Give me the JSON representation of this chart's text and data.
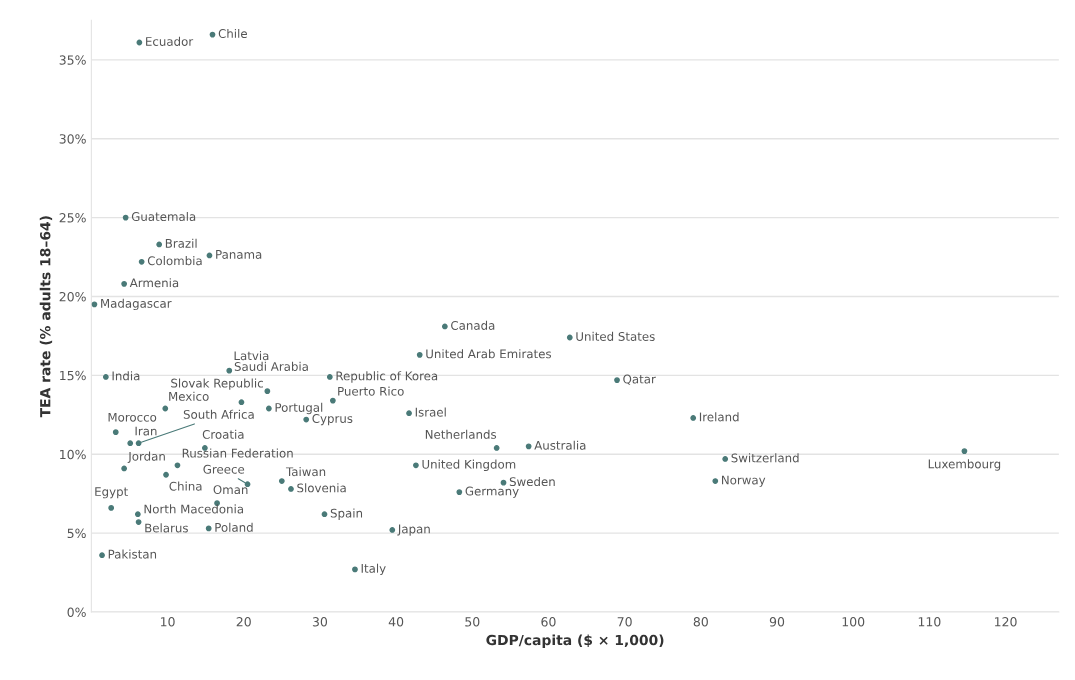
{
  "chart_data": {
    "type": "scatter",
    "xlabel": "GDP/capita ($ × 1,000)",
    "ylabel": "TEA rate (% adults 18–64)",
    "xlim": [
      0,
      127
    ],
    "xticks": [
      10,
      20,
      30,
      40,
      50,
      60,
      70,
      80,
      90,
      100,
      110,
      120
    ],
    "ylim": [
      0,
      37.5
    ],
    "yticks": [
      {
        "value": 0,
        "label": "0%"
      },
      {
        "value": 5,
        "label": "5%"
      },
      {
        "value": 10,
        "label": "10%"
      },
      {
        "value": 15,
        "label": "15%"
      },
      {
        "value": 20,
        "label": "20%"
      },
      {
        "value": 25,
        "label": "25%"
      },
      {
        "value": 30,
        "label": "30%"
      },
      {
        "value": 35,
        "label": "35%"
      }
    ],
    "grid": "y",
    "marker": "circle",
    "series": [
      {
        "color": "#4a7a78",
        "x": [
          6.3,
          15.9,
          4.5,
          8.9,
          15.5,
          6.6,
          4.3,
          0.4,
          1.9,
          18.1,
          23.1,
          19.7,
          9.7,
          23.3,
          31.3,
          31.7,
          28.2,
          3.2,
          5.1,
          6.2,
          14.9,
          4.3,
          11.3,
          9.8,
          20.5,
          16.5,
          25.0,
          26.2,
          2.6,
          6.1,
          6.2,
          15.4,
          30.6,
          1.4,
          34.6,
          46.4,
          62.8,
          43.1,
          69.0,
          41.7,
          53.2,
          57.4,
          42.6,
          54.1,
          48.3,
          39.5,
          79.0,
          83.2,
          81.9,
          114.6
        ],
        "values": [
          36.1,
          36.6,
          25.0,
          23.3,
          22.6,
          22.2,
          20.8,
          19.5,
          14.9,
          15.3,
          14.0,
          13.3,
          12.9,
          12.9,
          14.9,
          13.4,
          12.2,
          11.4,
          10.7,
          10.7,
          10.4,
          9.1,
          9.3,
          8.7,
          8.1,
          6.9,
          8.3,
          7.8,
          6.6,
          6.2,
          5.7,
          5.3,
          6.2,
          3.6,
          2.7,
          18.1,
          17.4,
          16.3,
          14.7,
          12.6,
          10.4,
          10.5,
          9.3,
          8.2,
          7.6,
          5.2,
          12.3,
          9.7,
          8.3,
          10.2
        ]
      }
    ],
    "annotations": [
      {
        "text": "Ecuador",
        "x": 6.3,
        "y": 36.1
      },
      {
        "text": "Chile",
        "x": 15.9,
        "y": 36.6
      },
      {
        "text": "Guatemala",
        "x": 4.5,
        "y": 25.0
      },
      {
        "text": "Brazil",
        "x": 8.9,
        "y": 23.3
      },
      {
        "text": "Panama",
        "x": 15.5,
        "y": 22.6
      },
      {
        "text": "Colombia",
        "x": 6.6,
        "y": 22.2
      },
      {
        "text": "Armenia",
        "x": 4.3,
        "y": 20.8
      },
      {
        "text": "Madagascar",
        "x": 0.4,
        "y": 19.5
      },
      {
        "text": "India",
        "x": 1.9,
        "y": 14.9
      },
      {
        "text": "Latvia",
        "x": 18.1,
        "y": 15.3
      },
      {
        "text": "Saudi Arabia",
        "x": 23.1,
        "y": 14.0
      },
      {
        "text": "Slovak Republic",
        "x": 19.7,
        "y": 13.3
      },
      {
        "text": "Mexico",
        "x": 9.7,
        "y": 12.9
      },
      {
        "text": "Portugal",
        "x": 23.3,
        "y": 12.9
      },
      {
        "text": "Republic of Korea",
        "x": 31.3,
        "y": 14.9
      },
      {
        "text": "Puerto Rico",
        "x": 31.7,
        "y": 13.4
      },
      {
        "text": "Cyprus",
        "x": 28.2,
        "y": 12.2
      },
      {
        "text": "Morocco",
        "x": 3.2,
        "y": 11.4
      },
      {
        "text": "Iran",
        "x": 5.1,
        "y": 10.7
      },
      {
        "text": "South Africa",
        "x": 6.2,
        "y": 10.7
      },
      {
        "text": "Croatia",
        "x": 14.9,
        "y": 10.4
      },
      {
        "text": "Jordan",
        "x": 4.3,
        "y": 9.1
      },
      {
        "text": "Russian Federation",
        "x": 11.3,
        "y": 9.3
      },
      {
        "text": "China",
        "x": 9.8,
        "y": 8.7
      },
      {
        "text": "Greece",
        "x": 20.5,
        "y": 8.1
      },
      {
        "text": "Oman",
        "x": 16.5,
        "y": 6.9
      },
      {
        "text": "Taiwan",
        "x": 25.0,
        "y": 8.3
      },
      {
        "text": "Slovenia",
        "x": 26.2,
        "y": 7.8
      },
      {
        "text": "Egypt",
        "x": 2.6,
        "y": 6.6
      },
      {
        "text": "North Macedonia",
        "x": 6.1,
        "y": 6.2
      },
      {
        "text": "Belarus",
        "x": 6.2,
        "y": 5.7
      },
      {
        "text": "Poland",
        "x": 15.4,
        "y": 5.3
      },
      {
        "text": "Spain",
        "x": 30.6,
        "y": 6.2
      },
      {
        "text": "Pakistan",
        "x": 1.4,
        "y": 3.6
      },
      {
        "text": "Italy",
        "x": 34.6,
        "y": 2.7
      },
      {
        "text": "Canada",
        "x": 46.4,
        "y": 18.1
      },
      {
        "text": "United States",
        "x": 62.8,
        "y": 17.4
      },
      {
        "text": "United Arab Emirates",
        "x": 43.1,
        "y": 16.3
      },
      {
        "text": "Qatar",
        "x": 69.0,
        "y": 14.7
      },
      {
        "text": "Israel",
        "x": 41.7,
        "y": 12.6
      },
      {
        "text": "Netherlands",
        "x": 53.2,
        "y": 10.4
      },
      {
        "text": "Australia",
        "x": 57.4,
        "y": 10.5
      },
      {
        "text": "United Kingdom",
        "x": 42.6,
        "y": 9.3
      },
      {
        "text": "Sweden",
        "x": 54.1,
        "y": 8.2
      },
      {
        "text": "Germany",
        "x": 48.3,
        "y": 7.6
      },
      {
        "text": "Japan",
        "x": 39.5,
        "y": 5.2
      },
      {
        "text": "Ireland",
        "x": 79.0,
        "y": 12.3
      },
      {
        "text": "Switzerland",
        "x": 83.2,
        "y": 9.7
      },
      {
        "text": "Norway",
        "x": 81.9,
        "y": 8.3
      },
      {
        "text": "Luxembourg",
        "x": 114.6,
        "y": 10.2
      }
    ]
  }
}
